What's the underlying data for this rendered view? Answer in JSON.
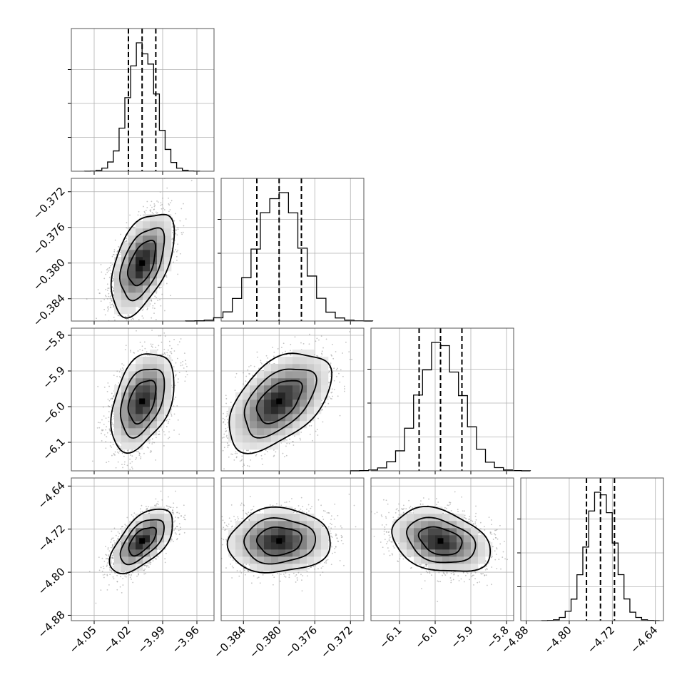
{
  "chart_data": {
    "type": "corner",
    "parameters": [
      {
        "center": -4.008,
        "sigma": 0.012,
        "range": [
          -4.07,
          -3.945
        ],
        "ticks": [
          -4.05,
          -4.02,
          -3.99,
          -3.96
        ],
        "tick_labels": [
          "−4.05",
          "−4.02",
          "−3.99",
          "−3.96"
        ],
        "quantiles": [
          -4.02,
          -4.008,
          -3.996
        ]
      },
      {
        "center": -0.38,
        "sigma": 0.0025,
        "range": [
          -0.3865,
          -0.3705
        ],
        "ticks": [
          -0.384,
          -0.38,
          -0.376,
          -0.372
        ],
        "tick_labels": [
          "−0.384",
          "−0.380",
          "−0.376",
          "−0.372"
        ],
        "quantiles": [
          -0.3825,
          -0.38,
          -0.3775
        ]
      },
      {
        "center": -5.985,
        "sigma": 0.06,
        "range": [
          -6.18,
          -5.78
        ],
        "ticks": [
          -6.1,
          -6.0,
          -5.9,
          -5.8
        ],
        "tick_labels": [
          "−6.1",
          "−6.0",
          "−5.9",
          "−5.8"
        ],
        "quantiles": [
          -6.045,
          -5.985,
          -5.925
        ]
      },
      {
        "center": -4.742,
        "sigma": 0.026,
        "range": [
          -4.89,
          -4.625
        ],
        "ticks": [
          -4.88,
          -4.8,
          -4.72,
          -4.64
        ],
        "tick_labels": [
          "−4.88",
          "−4.80",
          "−4.72",
          "−4.64"
        ],
        "quantiles": [
          -4.768,
          -4.742,
          -4.716
        ]
      }
    ],
    "correlations": {
      "1-0": 0.5,
      "2-0": 0.4,
      "2-1": 0.5,
      "3-0": 0.6,
      "3-1": 0.05,
      "3-2": -0.3
    },
    "samples_per_panel": 3500,
    "histogram_bins": 20,
    "contour_levels_sigma": [
      1.0,
      1.6,
      2.3
    ],
    "grid": true,
    "colors": {
      "line": "#000000",
      "dots": "#8a8a8a",
      "grid": "#b0b0b0"
    }
  }
}
